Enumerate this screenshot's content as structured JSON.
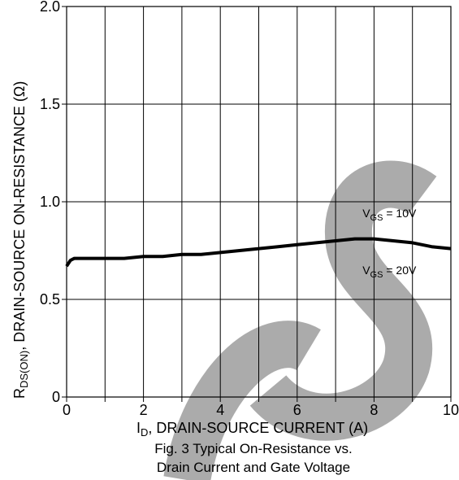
{
  "chart_data": {
    "type": "line",
    "title": "",
    "caption": [
      "Fig. 3 Typical On-Resistance vs.",
      "Drain Current and Gate Voltage"
    ],
    "xlabel": {
      "main": "I",
      "sub": "D",
      "rest": ", DRAIN-SOURCE CURRENT (A)"
    },
    "ylabel": {
      "main": "R",
      "sub": "DS(ON)",
      "rest": ", DRAIN-SOURCE ON-RESISTANCE (Ω)"
    },
    "xlim": [
      0,
      10
    ],
    "ylim": [
      0,
      2.0
    ],
    "xticks": [
      0,
      1,
      2,
      3,
      4,
      5,
      6,
      7,
      8,
      9,
      10
    ],
    "xtick_labels": [
      "0",
      "",
      "2",
      "",
      "4",
      "",
      "6",
      "",
      "8",
      "",
      "10"
    ],
    "yticks": [
      0,
      0.5,
      1.0,
      1.5,
      2.0
    ],
    "ytick_labels": [
      "0",
      "0.5",
      "1.0",
      "1.5",
      "2.0"
    ],
    "grid": true,
    "series": [
      {
        "name": "",
        "x": [
          0,
          0.1,
          0.2,
          0.4,
          0.6,
          1.0,
          1.5,
          2.0,
          2.5,
          3.0,
          3.5,
          4.0,
          4.5,
          5.0,
          5.5,
          6.0,
          6.5,
          7.0,
          7.5,
          8.0,
          8.5,
          9.0,
          9.5,
          10.0
        ],
        "y": [
          0.67,
          0.7,
          0.71,
          0.71,
          0.71,
          0.71,
          0.71,
          0.72,
          0.72,
          0.73,
          0.73,
          0.74,
          0.75,
          0.76,
          0.77,
          0.78,
          0.79,
          0.8,
          0.81,
          0.81,
          0.8,
          0.79,
          0.77,
          0.76
        ]
      }
    ],
    "annotations": [
      {
        "main": "V",
        "sub": "GS",
        "rest": " = 10V",
        "x": 7.7,
        "y": 0.92
      },
      {
        "main": "V",
        "sub": "GS",
        "rest": " = 20V",
        "x": 7.7,
        "y": 0.63
      }
    ],
    "colors": {
      "line": "#000000",
      "grid": "#000000",
      "watermark": "#a6a6a6"
    }
  },
  "watermark": {
    "text": "S"
  }
}
